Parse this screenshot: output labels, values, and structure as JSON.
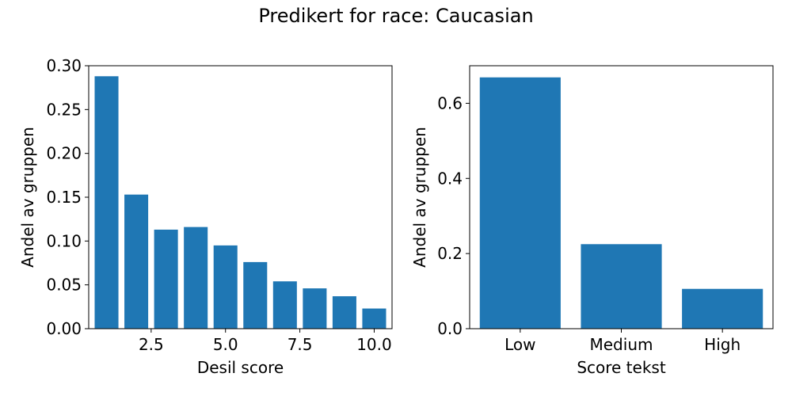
{
  "figure": {
    "title": "Predikert for race: Caucasian"
  },
  "colors": {
    "bar": "#1f77b4",
    "axis": "#000000"
  },
  "chart_data": [
    {
      "type": "bar",
      "title": "",
      "xlabel": "Desil score",
      "ylabel": "Andel av gruppen",
      "x": [
        1,
        2,
        3,
        4,
        5,
        6,
        7,
        8,
        9,
        10
      ],
      "values": [
        0.288,
        0.153,
        0.113,
        0.116,
        0.095,
        0.076,
        0.054,
        0.046,
        0.037,
        0.023
      ],
      "xlim": [
        0.4,
        10.6
      ],
      "ylim": [
        0,
        0.3
      ],
      "xticks": [
        2.5,
        5.0,
        7.5,
        10.0
      ],
      "xtick_labels": [
        "2.5",
        "5.0",
        "7.5",
        "10.0"
      ],
      "yticks": [
        0.0,
        0.05,
        0.1,
        0.15,
        0.2,
        0.25,
        0.3
      ],
      "ytick_labels": [
        "0.00",
        "0.05",
        "0.10",
        "0.15",
        "0.20",
        "0.25",
        "0.30"
      ],
      "bar_width": 0.8,
      "grid": false
    },
    {
      "type": "bar",
      "title": "",
      "xlabel": "Score tekst",
      "ylabel": "Andel av gruppen",
      "categories": [
        "Low",
        "Medium",
        "High"
      ],
      "values": [
        0.669,
        0.225,
        0.106
      ],
      "xlim": [
        -0.5,
        2.5
      ],
      "ylim": [
        0,
        0.7
      ],
      "yticks": [
        0.0,
        0.2,
        0.4,
        0.6
      ],
      "ytick_labels": [
        "0.0",
        "0.2",
        "0.4",
        "0.6"
      ],
      "bar_width": 0.8,
      "grid": false
    }
  ]
}
